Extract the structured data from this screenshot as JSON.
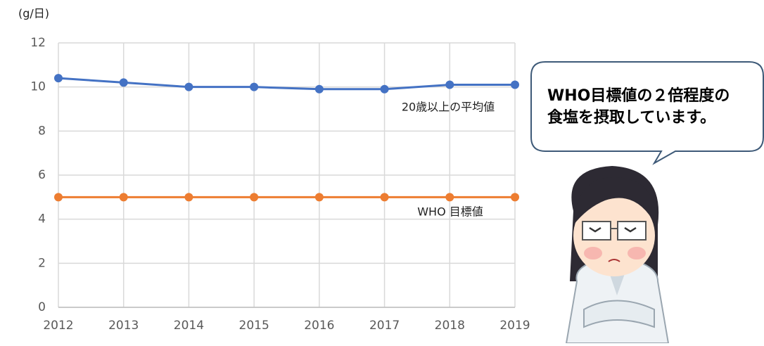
{
  "chart_data": {
    "type": "line",
    "y_unit_label": "(g/日)",
    "categories": [
      "2012",
      "2013",
      "2014",
      "2015",
      "2016",
      "2017",
      "2018",
      "2019"
    ],
    "series": [
      {
        "name": "20歳以上の平均値",
        "color": "#4472c4",
        "values": [
          10.4,
          10.2,
          10.0,
          10.0,
          9.9,
          9.9,
          10.1,
          10.1
        ]
      },
      {
        "name": "WHO 目標値",
        "color": "#ed7d31",
        "values": [
          5,
          5,
          5,
          5,
          5,
          5,
          5,
          5
        ]
      }
    ],
    "ylim": [
      0,
      12
    ],
    "yticks": [
      0,
      2,
      4,
      6,
      8,
      10,
      12
    ],
    "grid": true
  },
  "speech_bubble": {
    "lines": [
      "WHO目標値の２倍程度の",
      "食塩を摂取しています。"
    ]
  }
}
